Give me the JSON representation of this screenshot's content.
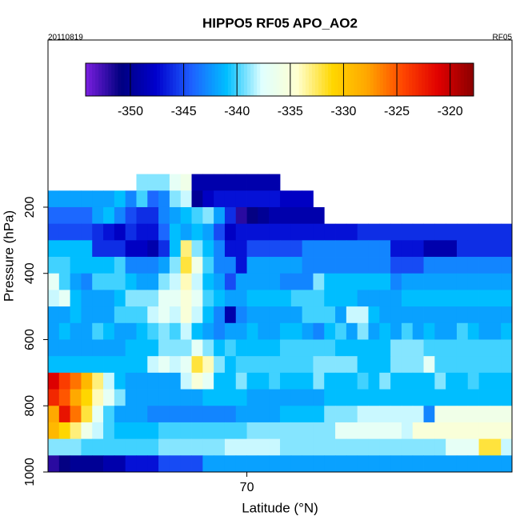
{
  "chart_data": {
    "type": "heatmap",
    "title": "HIPPO5 RF05 APO_AO2",
    "date_label": "20110819",
    "flight_label": "RF05",
    "x_label": "Latitude (°N)",
    "y_label": "Pressure (hPa)",
    "xlim": [
      61,
      82
    ],
    "xticks": [
      70
    ],
    "ylim": [
      1000,
      -305
    ],
    "yticks": [
      200,
      400,
      600,
      800,
      1000
    ],
    "x": [
      61.25,
      61.75,
      62.25,
      62.75,
      63.25,
      63.75,
      64.25,
      64.75,
      65.25,
      65.75,
      66.25,
      66.75,
      67.25,
      67.75,
      68.25,
      68.75,
      69.25,
      69.75,
      70.25,
      70.75,
      71.25,
      71.75,
      72.25,
      72.75,
      73.25,
      73.75,
      74.25,
      74.75,
      75.25,
      75.75,
      76.25,
      76.75,
      77.25,
      77.75,
      78.25,
      78.75,
      79.25,
      79.75,
      80.25,
      80.75,
      81.25,
      81.75
    ],
    "y": [
      125,
      175,
      225,
      275,
      325,
      375,
      425,
      475,
      525,
      575,
      625,
      675,
      725,
      775,
      825,
      875,
      925,
      975
    ],
    "z": [
      [
        null,
        null,
        null,
        null,
        null,
        null,
        null,
        null,
        -339,
        -339,
        -339,
        -337,
        -336,
        -349,
        -349,
        -349,
        -349,
        -349,
        -349,
        -349,
        -349,
        null,
        null,
        null,
        null,
        null,
        null,
        null,
        null,
        null,
        null,
        null,
        null,
        null,
        null,
        null,
        null,
        null,
        null,
        null,
        null,
        null
      ],
      [
        -342,
        -342,
        -342,
        -342,
        -342,
        -342,
        -341,
        -343,
        -340,
        -344,
        -343,
        -339,
        -338,
        -350,
        -348,
        -347,
        -347,
        -347,
        -347,
        -347,
        -347,
        -348,
        -348,
        -348,
        null,
        null,
        null,
        null,
        null,
        null,
        null,
        null,
        null,
        null,
        null,
        null,
        null,
        null,
        null,
        null,
        null,
        null
      ],
      [
        -344,
        -344,
        -344,
        -344,
        -342,
        -341,
        -343,
        -345,
        -346,
        -346,
        -343,
        -342,
        -341,
        -340,
        -339,
        -342,
        -346,
        -352,
        -351,
        -350,
        -349,
        -349,
        -349,
        -349,
        -349,
        null,
        null,
        null,
        null,
        null,
        null,
        null,
        null,
        null,
        null,
        null,
        null,
        null,
        null,
        null,
        null,
        null
      ],
      [
        -345,
        -345,
        -345,
        -345,
        -346,
        -347,
        -348,
        -346,
        -347,
        -347,
        -344,
        -341,
        -342,
        -341,
        -342,
        -345,
        -348,
        -347,
        -347,
        -347,
        -347,
        -347,
        -347,
        -347,
        -347,
        -347,
        -347,
        -347,
        -346,
        -346,
        -346,
        -346,
        -346,
        -346,
        -346,
        -346,
        -346,
        -346,
        -346,
        -346,
        -346,
        -346
      ],
      [
        -341,
        -341,
        -341,
        -341,
        -346,
        -346,
        -346,
        -348,
        -348,
        -349,
        -346,
        -341,
        -333,
        -339,
        -341,
        -343,
        -347,
        -347,
        -345,
        -345,
        -345,
        -345,
        -345,
        -343,
        -343,
        -343,
        -343,
        -343,
        -343,
        -343,
        -343,
        -347,
        -347,
        -347,
        -349,
        -349,
        -349,
        -346,
        -346,
        -346,
        -346,
        -346
      ],
      [
        -340,
        -340,
        -341,
        -341,
        -341,
        -341,
        -340,
        -343,
        -343,
        -343,
        -342,
        -339,
        -332,
        -336,
        -340,
        -343,
        -343,
        -347,
        -342,
        -342,
        -342,
        -342,
        -342,
        -343,
        -343,
        -343,
        -343,
        -343,
        -343,
        -343,
        -343,
        -345,
        -345,
        -345,
        -343,
        -343,
        -343,
        -343,
        -343,
        -343,
        -343,
        -343
      ],
      [
        -337,
        -340,
        -342,
        -343,
        -340,
        -340,
        -340,
        -341,
        -342,
        -342,
        -339,
        -338,
        -334,
        -338,
        -341,
        -342,
        -345,
        -342,
        -342,
        -342,
        -342,
        -343,
        -343,
        -343,
        -339,
        -341,
        -341,
        -341,
        -341,
        -341,
        -341,
        -343,
        -342,
        -342,
        -342,
        -342,
        -342,
        -342,
        -342,
        -342,
        -342,
        -342
      ],
      [
        -338,
        -337,
        -341,
        -342,
        -342,
        -342,
        -341,
        -339,
        -339,
        -339,
        -337,
        -337,
        -335,
        -337,
        -340,
        -341,
        -342,
        -342,
        -341,
        -341,
        -341,
        -341,
        -340,
        -340,
        -340,
        -341,
        -341,
        -341,
        -342,
        -342,
        -342,
        -342,
        -341,
        -341,
        -341,
        -341,
        -341,
        -341,
        -341,
        -341,
        -341,
        -341
      ],
      [
        -342,
        -342,
        -341,
        -342,
        -342,
        -342,
        -340,
        -340,
        -340,
        -338,
        -337,
        -338,
        -335,
        -338,
        -341,
        -343,
        -349,
        -343,
        -342,
        -342,
        -342,
        -342,
        -342,
        -340,
        -340,
        -340,
        -342,
        -338,
        -338,
        -341,
        -342,
        -342,
        -342,
        -342,
        -342,
        -342,
        -342,
        -342,
        -342,
        -342,
        -342,
        -342
      ],
      [
        -342,
        -341,
        -342,
        -342,
        -340,
        -341,
        -342,
        -342,
        -341,
        -340,
        -339,
        -340,
        -338,
        -341,
        -342,
        -343,
        -342,
        -342,
        -341,
        -342,
        -342,
        -341,
        -341,
        -342,
        -343,
        -341,
        -340,
        -342,
        -339,
        -342,
        -341,
        -342,
        -340,
        -342,
        -341,
        -342,
        -342,
        -340,
        -341,
        -342,
        -342,
        -341
      ],
      [
        -342,
        -342,
        -342,
        -342,
        -342,
        -342,
        -342,
        -341,
        -341,
        -341,
        -339,
        -339,
        -339,
        -337,
        -339,
        -341,
        -340,
        -341,
        -341,
        -341,
        -341,
        -340,
        -340,
        -340,
        -340,
        -340,
        -341,
        -341,
        -341,
        -341,
        -341,
        -339,
        -339,
        -339,
        -340,
        -340,
        -340,
        -340,
        -340,
        -340,
        -340,
        -340
      ],
      [
        -341,
        -341,
        -341,
        -341,
        -341,
        -341,
        -341,
        -341,
        -341,
        -338,
        -337,
        -338,
        -337,
        -332,
        -334,
        -339,
        -341,
        -340,
        -340,
        -340,
        -340,
        -340,
        -340,
        -340,
        -339,
        -339,
        -339,
        -339,
        -341,
        -341,
        -341,
        -339,
        -339,
        -339,
        -337,
        -340,
        -340,
        -340,
        -340,
        -340,
        -340,
        -340
      ],
      [
        -321,
        -324,
        -326,
        -329,
        -333,
        -338,
        -341,
        -342,
        -342,
        -342,
        -342,
        -342,
        -338,
        -335,
        -337,
        -341,
        -341,
        -339,
        -341,
        -341,
        -340,
        -341,
        -341,
        -341,
        -339,
        -341,
        -341,
        -341,
        -340,
        -341,
        -339,
        -341,
        -341,
        -341,
        -341,
        -339,
        -341,
        -341,
        -340,
        -341,
        -341,
        -341
      ],
      [
        -323,
        -325,
        -328,
        -331,
        -334,
        -337,
        -339,
        -342,
        -342,
        -342,
        -342,
        -342,
        -342,
        -342,
        -341,
        -341,
        -341,
        -341,
        -342,
        -342,
        -342,
        -342,
        -342,
        -342,
        -342,
        -341,
        -341,
        -341,
        -341,
        -341,
        -341,
        -341,
        -341,
        -341,
        -341,
        -341,
        -341,
        -341,
        -341,
        -341,
        -341,
        -341
      ],
      [
        -328,
        -322,
        -326,
        -332,
        -337,
        -340,
        -342,
        -342,
        -342,
        -343,
        -343,
        -343,
        -343,
        -343,
        -343,
        -343,
        -343,
        -342,
        -342,
        -342,
        -342,
        -341,
        -341,
        -341,
        -341,
        -339,
        -339,
        -339,
        -338,
        -338,
        -338,
        -338,
        -338,
        -338,
        -343,
        -336,
        -336,
        -336,
        -336,
        -336,
        -336,
        -336
      ],
      [
        -329,
        -331,
        -333,
        -336,
        -338,
        -340,
        -341,
        -341,
        -341,
        -341,
        -340,
        -340,
        -340,
        -340,
        -340,
        -340,
        -340,
        -340,
        -339,
        -339,
        -339,
        -339,
        -339,
        -339,
        -339,
        -339,
        -337,
        -337,
        -337,
        -337,
        -337,
        -337,
        -338,
        -335,
        -335,
        -335,
        -335,
        -335,
        -335,
        -335,
        -335,
        -335
      ],
      [
        -339,
        -339,
        -339,
        -340,
        -340,
        -340,
        -340,
        -340,
        -340,
        -340,
        -339,
        -339,
        -339,
        -339,
        -339,
        -339,
        -338,
        -338,
        -338,
        -338,
        -338,
        -339,
        -339,
        -339,
        -339,
        -339,
        -339,
        -339,
        -339,
        -339,
        -339,
        -339,
        -339,
        -339,
        -339,
        -339,
        -337,
        -337,
        -337,
        -332,
        -332,
        -338
      ],
      [
        -352,
        -351,
        -350,
        -350,
        -350,
        -349,
        -349,
        -347,
        -347,
        -347,
        -345,
        -345,
        -345,
        -345,
        -342,
        -342,
        -342,
        -342,
        -342,
        -342,
        -342,
        -342,
        -342,
        -342,
        -342,
        -342,
        -342,
        -342,
        -342,
        -342,
        -342,
        -342,
        -342,
        -342,
        -342,
        -342,
        -342,
        -342,
        -342,
        -342,
        -342,
        -342
      ]
    ],
    "colorbar": {
      "lim": [
        -354.2,
        -317.8
      ],
      "ticks": [
        -350,
        -345,
        -340,
        -335,
        -330,
        -325,
        -320
      ],
      "colors": [
        "#7b1fe0",
        "#000080",
        "#0000cd",
        "#1e60ff",
        "#00bfff",
        "#e0ffff",
        "#ffffd0",
        "#ffd700",
        "#ffa500",
        "#ff4500",
        "#e00000",
        "#8b0000"
      ]
    }
  }
}
